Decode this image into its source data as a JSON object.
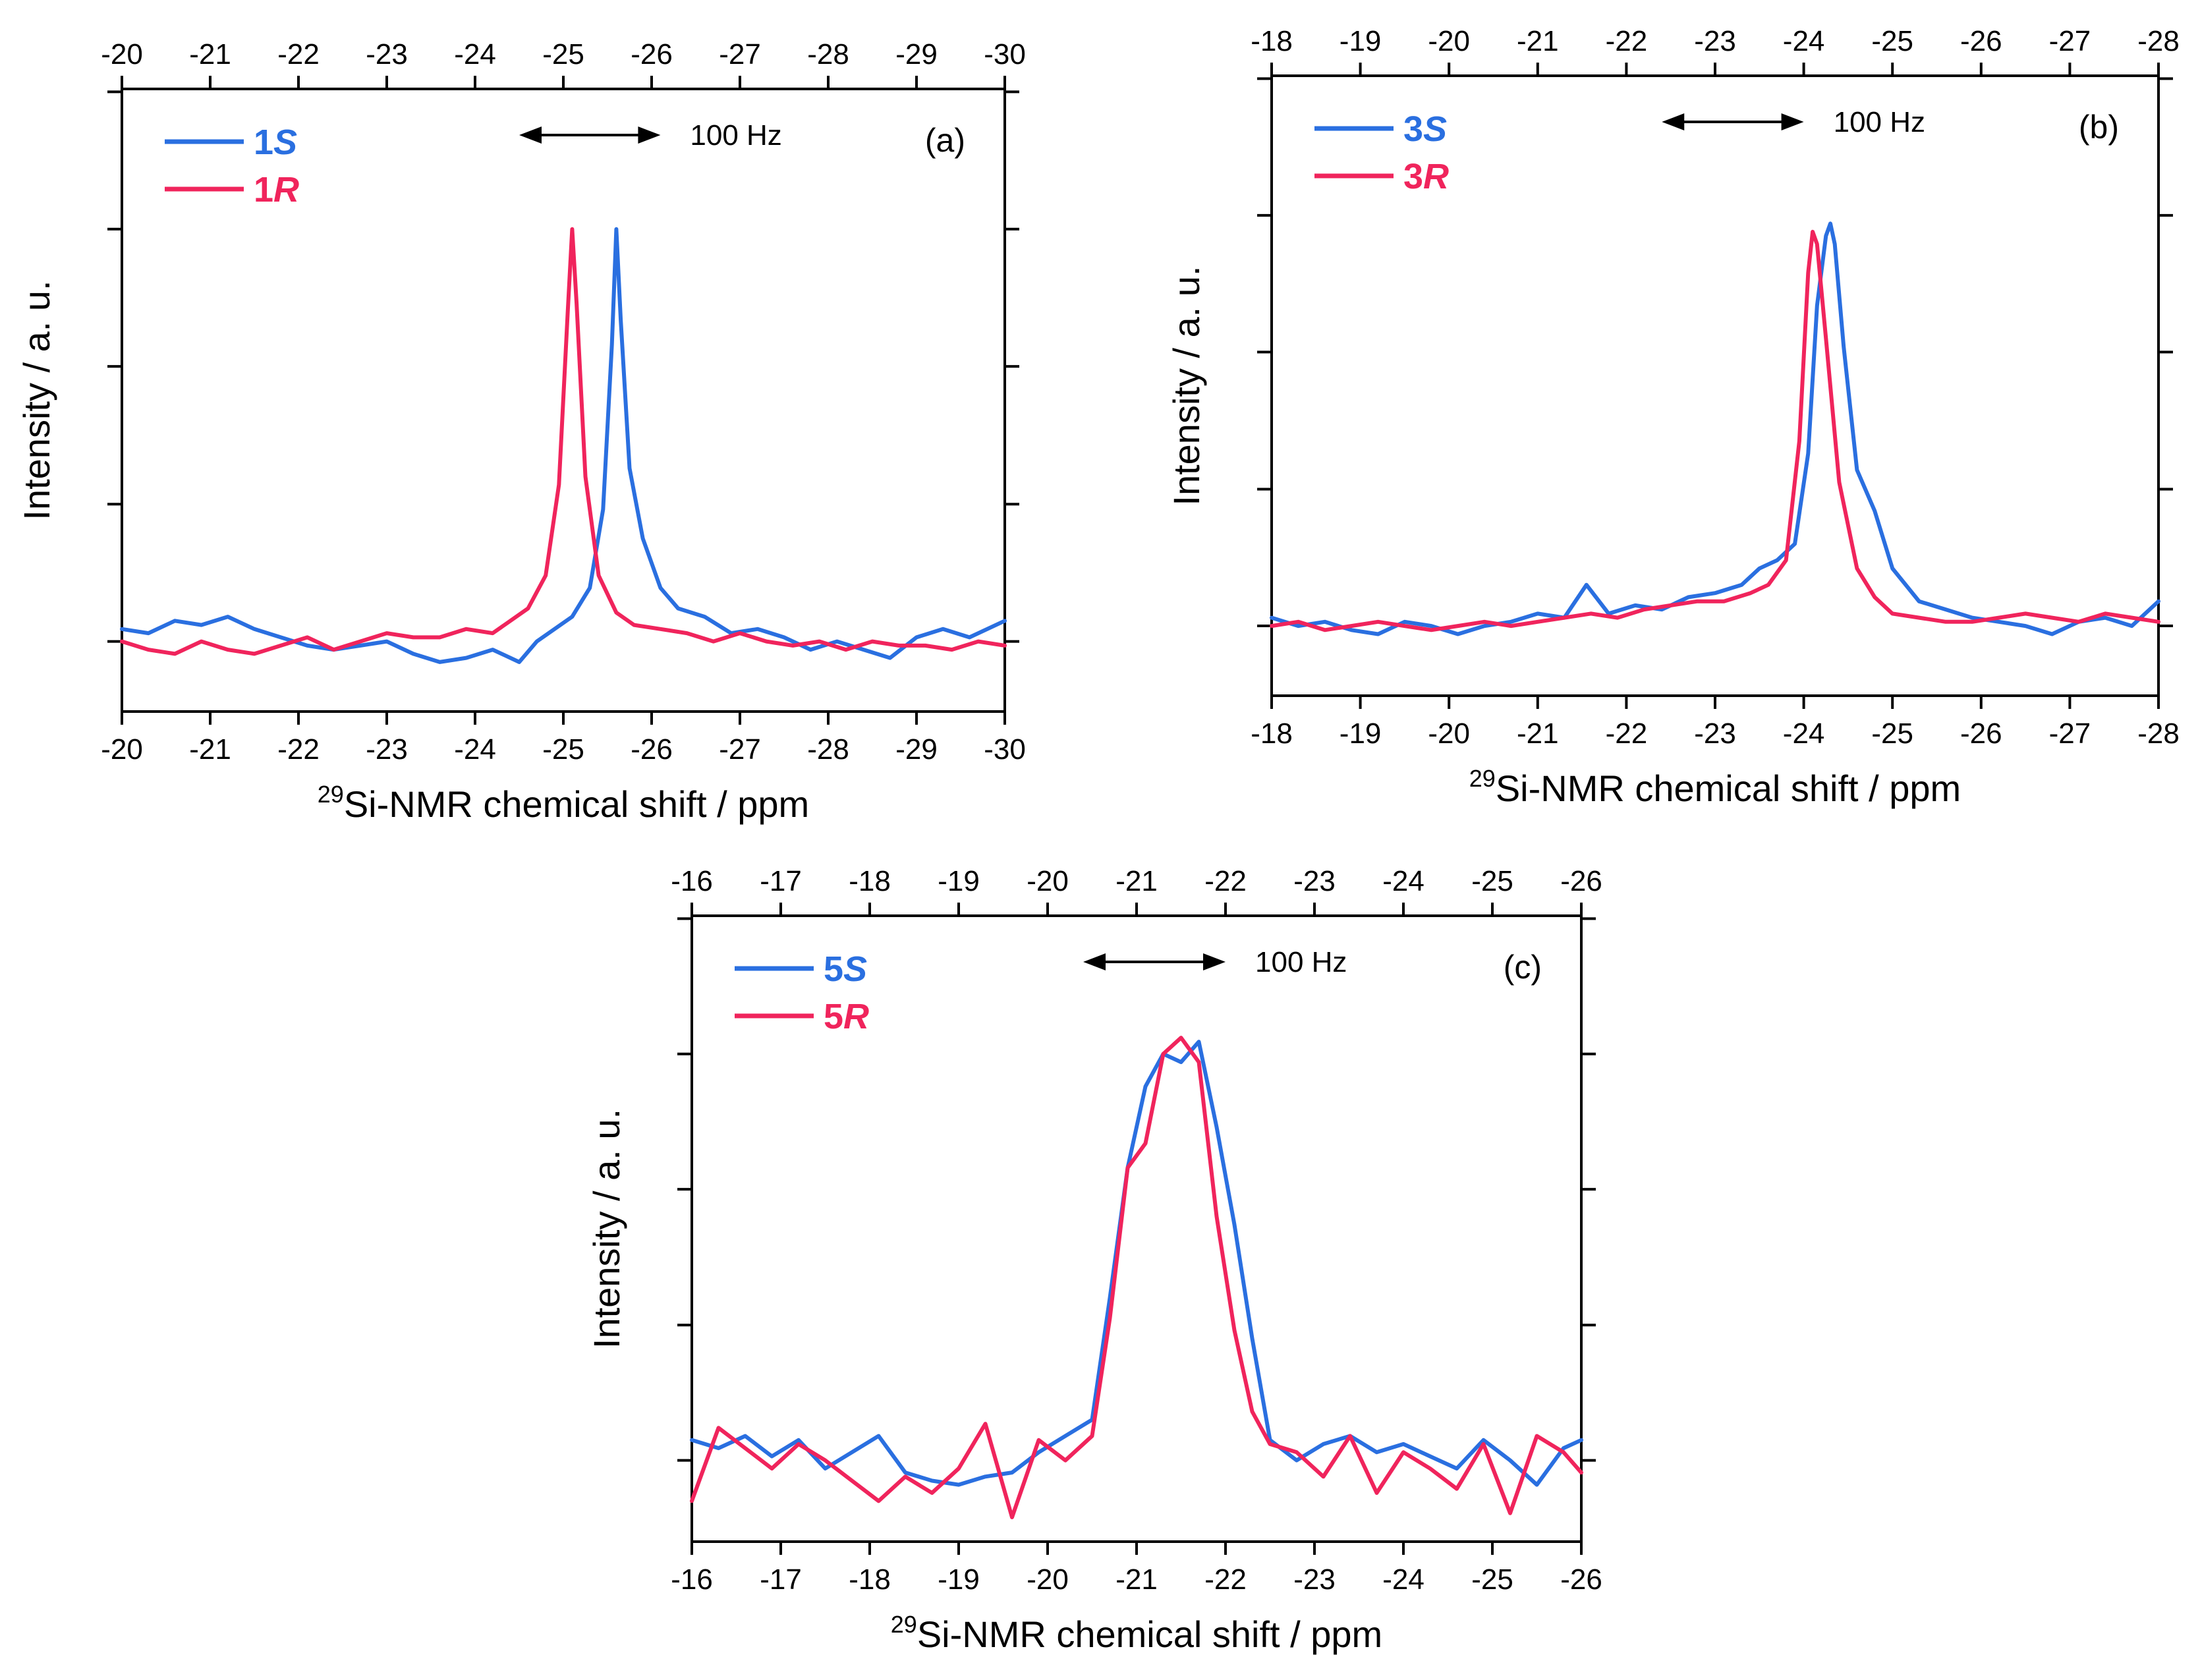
{
  "figure": {
    "colors": {
      "S": "#2a6fe0",
      "R": "#f0245c"
    },
    "scale_bar_label": "100 Hz"
  },
  "chart_data": [
    {
      "type": "line",
      "panel_label": "(a)",
      "xlabel_sup": "29",
      "xlabel": "Si-NMR chemical shift / ppm",
      "ylabel": "Intensity / a. u.",
      "xlim": [
        -20,
        -30
      ],
      "ylim": [
        -0.17,
        1.34
      ],
      "x_ticks": [
        -20,
        -21,
        -22,
        -23,
        -24,
        -25,
        -26,
        -27,
        -28,
        -29,
        -30
      ],
      "y_ticks": [
        0,
        0.333,
        0.667,
        1.0,
        1.333
      ],
      "grid": false,
      "legend_position": "top-left",
      "scale_bar": {
        "from": -24.5,
        "to": -26.1,
        "label": "100 Hz"
      },
      "series": [
        {
          "name_num": "1",
          "name_ital": "S",
          "color": "#2a6fe0",
          "x": [
            -20.0,
            -20.3,
            -20.6,
            -20.9,
            -21.2,
            -21.5,
            -21.8,
            -22.1,
            -22.4,
            -22.7,
            -23.0,
            -23.3,
            -23.6,
            -23.9,
            -24.2,
            -24.5,
            -24.7,
            -24.9,
            -25.1,
            -25.3,
            -25.45,
            -25.55,
            -25.6,
            -25.65,
            -25.75,
            -25.9,
            -26.1,
            -26.3,
            -26.6,
            -26.9,
            -27.2,
            -27.5,
            -27.8,
            -28.1,
            -28.4,
            -28.7,
            -29.0,
            -29.3,
            -29.6,
            -30.0
          ],
          "y": [
            0.03,
            0.02,
            0.05,
            0.04,
            0.06,
            0.03,
            0.01,
            -0.01,
            -0.02,
            -0.01,
            0.0,
            -0.03,
            -0.05,
            -0.04,
            -0.02,
            -0.05,
            0.0,
            0.03,
            0.06,
            0.13,
            0.32,
            0.72,
            1.0,
            0.78,
            0.42,
            0.25,
            0.13,
            0.08,
            0.06,
            0.02,
            0.03,
            0.01,
            -0.02,
            0.0,
            -0.02,
            -0.04,
            0.01,
            0.03,
            0.01,
            0.05
          ]
        },
        {
          "name_num": "1",
          "name_ital": "R",
          "color": "#f0245c",
          "x": [
            -20.0,
            -20.3,
            -20.6,
            -20.9,
            -21.2,
            -21.5,
            -21.8,
            -22.1,
            -22.4,
            -22.7,
            -23.0,
            -23.3,
            -23.6,
            -23.9,
            -24.2,
            -24.4,
            -24.6,
            -24.8,
            -24.95,
            -25.05,
            -25.1,
            -25.15,
            -25.25,
            -25.4,
            -25.6,
            -25.8,
            -26.1,
            -26.4,
            -26.7,
            -27.0,
            -27.3,
            -27.6,
            -27.9,
            -28.2,
            -28.5,
            -28.8,
            -29.1,
            -29.4,
            -29.7,
            -30.0
          ],
          "y": [
            0.0,
            -0.02,
            -0.03,
            0.0,
            -0.02,
            -0.03,
            -0.01,
            0.01,
            -0.02,
            0.0,
            0.02,
            0.01,
            0.01,
            0.03,
            0.02,
            0.05,
            0.08,
            0.16,
            0.38,
            0.8,
            1.0,
            0.82,
            0.4,
            0.16,
            0.07,
            0.04,
            0.03,
            0.02,
            0.0,
            0.02,
            0.0,
            -0.01,
            0.0,
            -0.02,
            0.0,
            -0.01,
            -0.01,
            -0.02,
            0.0,
            -0.01
          ]
        }
      ]
    },
    {
      "type": "line",
      "panel_label": "(b)",
      "xlabel_sup": "29",
      "xlabel": "Si-NMR chemical shift / ppm",
      "ylabel": "Intensity / a. u.",
      "xlim": [
        -18,
        -28
      ],
      "ylim": [
        -0.17,
        1.34
      ],
      "x_ticks": [
        -18,
        -19,
        -20,
        -21,
        -22,
        -23,
        -24,
        -25,
        -26,
        -27,
        -28
      ],
      "y_ticks": [
        0,
        0.333,
        0.667,
        1.0,
        1.333
      ],
      "grid": false,
      "legend_position": "top-left",
      "scale_bar": {
        "from": -22.4,
        "to": -24.0,
        "label": "100 Hz"
      },
      "series": [
        {
          "name_num": "3",
          "name_ital": "S",
          "color": "#2a6fe0",
          "x": [
            -18.0,
            -18.3,
            -18.6,
            -18.9,
            -19.2,
            -19.5,
            -19.8,
            -20.1,
            -20.4,
            -20.7,
            -21.0,
            -21.3,
            -21.55,
            -21.8,
            -22.1,
            -22.4,
            -22.7,
            -23.0,
            -23.3,
            -23.5,
            -23.7,
            -23.9,
            -24.05,
            -24.15,
            -24.25,
            -24.3,
            -24.35,
            -24.45,
            -24.6,
            -24.8,
            -25.0,
            -25.3,
            -25.6,
            -25.9,
            -26.2,
            -26.5,
            -26.8,
            -27.1,
            -27.4,
            -27.7,
            -28.0
          ],
          "y": [
            0.02,
            0.0,
            0.01,
            -0.01,
            -0.02,
            0.01,
            0.0,
            -0.02,
            0.0,
            0.01,
            0.03,
            0.02,
            0.1,
            0.03,
            0.05,
            0.04,
            0.07,
            0.08,
            0.1,
            0.14,
            0.16,
            0.2,
            0.42,
            0.78,
            0.95,
            0.98,
            0.93,
            0.68,
            0.38,
            0.28,
            0.14,
            0.06,
            0.04,
            0.02,
            0.01,
            0.0,
            -0.02,
            0.01,
            0.02,
            0.0,
            0.06
          ]
        },
        {
          "name_num": "3",
          "name_ital": "R",
          "color": "#f0245c",
          "x": [
            -18.0,
            -18.3,
            -18.6,
            -18.9,
            -19.2,
            -19.5,
            -19.8,
            -20.1,
            -20.4,
            -20.7,
            -21.0,
            -21.3,
            -21.6,
            -21.9,
            -22.2,
            -22.5,
            -22.8,
            -23.1,
            -23.4,
            -23.6,
            -23.8,
            -23.95,
            -24.05,
            -24.1,
            -24.15,
            -24.25,
            -24.4,
            -24.6,
            -24.8,
            -25.0,
            -25.3,
            -25.6,
            -25.9,
            -26.2,
            -26.5,
            -26.8,
            -27.1,
            -27.4,
            -27.7,
            -28.0
          ],
          "y": [
            0.0,
            0.01,
            -0.01,
            0.0,
            0.01,
            0.0,
            -0.01,
            0.0,
            0.01,
            0.0,
            0.01,
            0.02,
            0.03,
            0.02,
            0.04,
            0.05,
            0.06,
            0.06,
            0.08,
            0.1,
            0.16,
            0.45,
            0.86,
            0.96,
            0.93,
            0.7,
            0.35,
            0.14,
            0.07,
            0.03,
            0.02,
            0.01,
            0.01,
            0.02,
            0.03,
            0.02,
            0.01,
            0.03,
            0.02,
            0.01
          ]
        }
      ]
    },
    {
      "type": "line",
      "panel_label": "(c)",
      "xlabel_sup": "29",
      "xlabel": "Si-NMR chemical shift / ppm",
      "ylabel": "Intensity / a. u.",
      "xlim": [
        -16,
        -26
      ],
      "ylim": [
        -0.2,
        1.34
      ],
      "x_ticks": [
        -16,
        -17,
        -18,
        -19,
        -20,
        -21,
        -22,
        -23,
        -24,
        -25,
        -26
      ],
      "y_ticks": [
        0,
        0.333,
        0.667,
        1.0,
        1.333
      ],
      "grid": false,
      "legend_position": "top-left",
      "scale_bar": {
        "from": -20.4,
        "to": -22.0,
        "label": "100 Hz"
      },
      "series": [
        {
          "name_num": "5",
          "name_ital": "S",
          "color": "#2a6fe0",
          "x": [
            -16.0,
            -16.3,
            -16.6,
            -16.9,
            -17.2,
            -17.5,
            -17.8,
            -18.1,
            -18.4,
            -18.7,
            -19.0,
            -19.3,
            -19.6,
            -19.9,
            -20.2,
            -20.5,
            -20.7,
            -20.9,
            -21.1,
            -21.3,
            -21.5,
            -21.7,
            -21.9,
            -22.1,
            -22.3,
            -22.5,
            -22.8,
            -23.1,
            -23.4,
            -23.7,
            -24.0,
            -24.3,
            -24.6,
            -24.9,
            -25.2,
            -25.5,
            -25.8,
            -26.0
          ],
          "y": [
            0.05,
            0.03,
            0.06,
            0.01,
            0.05,
            -0.02,
            0.02,
            0.06,
            -0.03,
            -0.05,
            -0.06,
            -0.04,
            -0.03,
            0.02,
            0.06,
            0.1,
            0.4,
            0.72,
            0.92,
            1.0,
            0.98,
            1.03,
            0.82,
            0.58,
            0.3,
            0.05,
            0.0,
            0.04,
            0.06,
            0.02,
            0.04,
            0.01,
            -0.02,
            0.05,
            0.0,
            -0.06,
            0.03,
            0.05
          ]
        },
        {
          "name_num": "5",
          "name_ital": "R",
          "color": "#f0245c",
          "x": [
            -16.0,
            -16.3,
            -16.6,
            -16.9,
            -17.2,
            -17.5,
            -17.8,
            -18.1,
            -18.4,
            -18.7,
            -19.0,
            -19.3,
            -19.6,
            -19.9,
            -20.2,
            -20.5,
            -20.7,
            -20.9,
            -21.1,
            -21.3,
            -21.5,
            -21.7,
            -21.9,
            -22.1,
            -22.3,
            -22.5,
            -22.8,
            -23.1,
            -23.4,
            -23.7,
            -24.0,
            -24.3,
            -24.6,
            -24.9,
            -25.2,
            -25.5,
            -25.8,
            -26.0
          ],
          "y": [
            -0.1,
            0.08,
            0.03,
            -0.02,
            0.04,
            0.0,
            -0.05,
            -0.1,
            -0.04,
            -0.08,
            -0.02,
            0.09,
            -0.14,
            0.05,
            0.0,
            0.06,
            0.35,
            0.72,
            0.78,
            1.0,
            1.04,
            0.98,
            0.6,
            0.32,
            0.12,
            0.04,
            0.02,
            -0.04,
            0.06,
            -0.08,
            0.02,
            -0.02,
            -0.07,
            0.04,
            -0.13,
            0.06,
            0.02,
            -0.03
          ]
        }
      ]
    }
  ]
}
